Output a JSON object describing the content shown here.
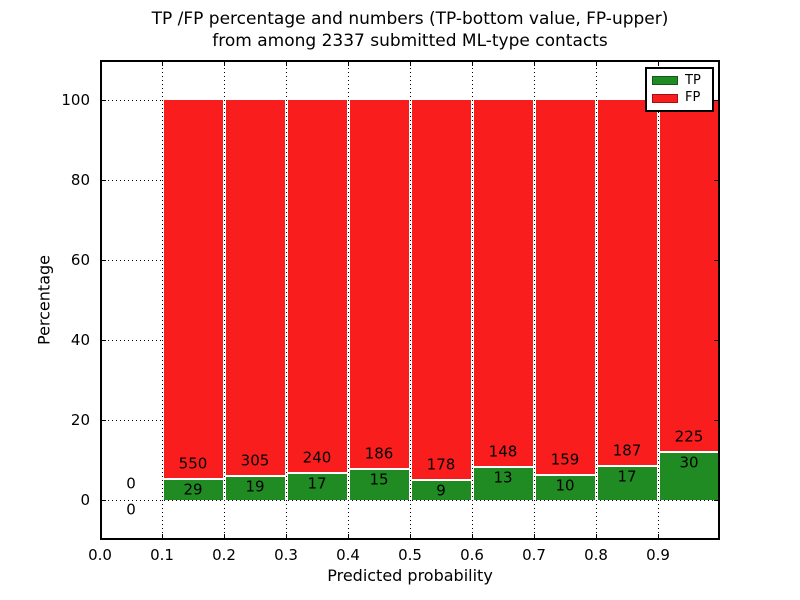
{
  "chart_data": {
    "type": "bar",
    "stacked": true,
    "title_line1": "TP /FP percentage and numbers (TP-bottom value, FP-upper)",
    "title_line2": "from among 2337 submitted ML-type contacts",
    "xlabel": "Predicted probability",
    "ylabel": "Percentage",
    "xlim": [
      0.0,
      1.0
    ],
    "ylim": [
      -10,
      110
    ],
    "x_ticks": [
      0.0,
      0.1,
      0.2,
      0.3,
      0.4,
      0.5,
      0.6,
      0.7,
      0.8,
      0.9
    ],
    "x_tick_labels": [
      "0.0",
      "0.1",
      "0.2",
      "0.3",
      "0.4",
      "0.5",
      "0.6",
      "0.7",
      "0.8",
      "0.9"
    ],
    "y_ticks": [
      0,
      20,
      40,
      60,
      80,
      100
    ],
    "y_tick_labels": [
      "0",
      "20",
      "40",
      "60",
      "80",
      "100"
    ],
    "bin_width": 0.1,
    "bin_starts": [
      0.0,
      0.1,
      0.2,
      0.3,
      0.4,
      0.5,
      0.6,
      0.7,
      0.8,
      0.9
    ],
    "series": [
      {
        "name": "TP",
        "color": "#208b22",
        "counts": [
          0,
          29,
          19,
          17,
          15,
          9,
          13,
          10,
          17,
          30
        ]
      },
      {
        "name": "FP",
        "color": "#fa1d1d",
        "counts": [
          0,
          550,
          305,
          240,
          186,
          178,
          148,
          159,
          187,
          225
        ]
      }
    ],
    "bar_unit": "percent of bin total (each bar stacks to 100%)",
    "legend": {
      "position": "upper right",
      "entries": [
        "TP",
        "FP"
      ]
    },
    "grid": "dotted",
    "total_contacts_shown_in_title": "2337"
  }
}
